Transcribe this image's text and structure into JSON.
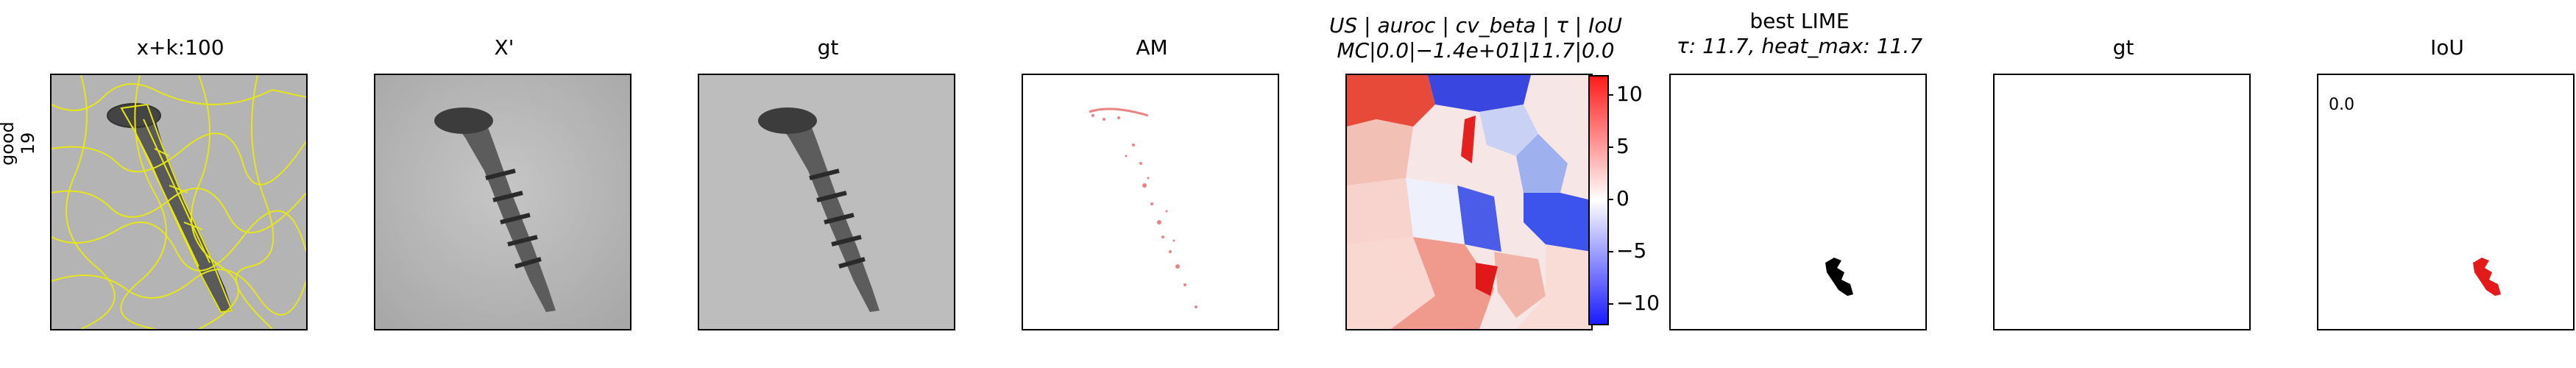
{
  "row_label": [
    "good",
    "19"
  ],
  "panels": [
    {
      "title": "x+k:100"
    },
    {
      "title": "X'"
    },
    {
      "title": "gt"
    },
    {
      "title": "AM"
    },
    {
      "title_line1": "US | auroc | cv_beta | τ | IoU",
      "title_line2": "MC|0.0|−1.4e+01|11.7|0.0"
    },
    {
      "title_line1": "best LIME",
      "title_line2": "τ: 11.7, heat_max: 11.7"
    },
    {
      "title": "gt"
    },
    {
      "title": "IoU",
      "value": "0.0"
    }
  ],
  "colorbar": {
    "ticks": [
      "10",
      "5",
      "0",
      "−5",
      "−10"
    ],
    "colors": [
      "#1a1aff",
      "#ffffff",
      "#ff1a1a"
    ]
  }
}
